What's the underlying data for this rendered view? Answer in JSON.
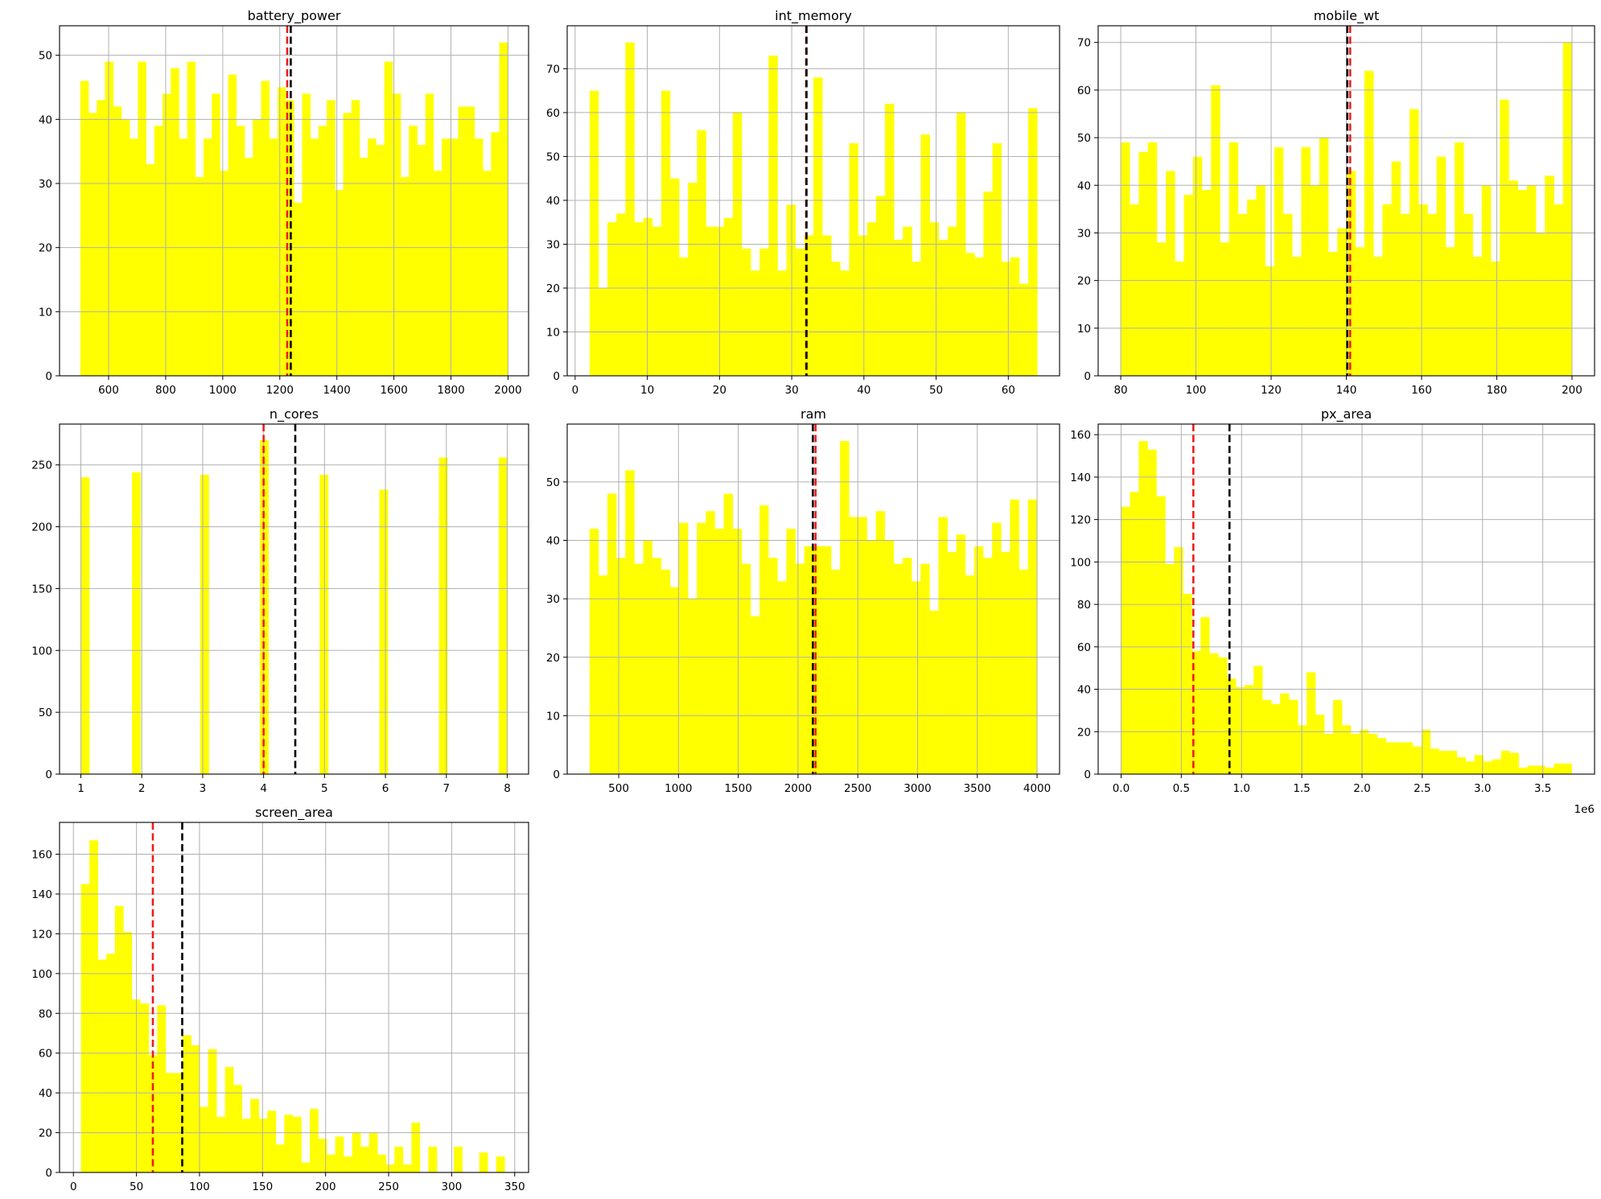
{
  "colors": {
    "bar": "#ffff00",
    "median_line": "#ee1c1c",
    "mean_line": "#000000",
    "grid": "#b0b0b0",
    "axis": "#000000"
  },
  "chart_data": [
    {
      "type": "bar",
      "title": "battery_power",
      "xlabel": "",
      "ylabel": "",
      "xlim": [
        428,
        2072
      ],
      "ylim": [
        0,
        54.6
      ],
      "xticks": [
        600,
        800,
        1000,
        1200,
        1400,
        1600,
        1800,
        2000
      ],
      "yticks": [
        0,
        10,
        20,
        30,
        40,
        50
      ],
      "bin_start": 501,
      "bin_end": 1998,
      "values": [
        46,
        41,
        43,
        49,
        42,
        40,
        37,
        49,
        33,
        39,
        44,
        48,
        37,
        49,
        31,
        37,
        44,
        32,
        47,
        39,
        34,
        40,
        46,
        37,
        45,
        43,
        27,
        44,
        37,
        39,
        43,
        29,
        41,
        43,
        34,
        37,
        36,
        49,
        44,
        31,
        39,
        36,
        44,
        32,
        37,
        37,
        42,
        42,
        37,
        32,
        38,
        52
      ],
      "median": 1226,
      "mean": 1238.5,
      "grid": true
    },
    {
      "type": "bar",
      "title": "int_memory",
      "xlabel": "",
      "ylabel": "",
      "xlim": [
        -1.1,
        67.1
      ],
      "ylim": [
        0,
        79.8
      ],
      "xticks": [
        0,
        10,
        20,
        30,
        40,
        50,
        60
      ],
      "yticks": [
        0,
        10,
        20,
        30,
        40,
        50,
        60,
        70
      ],
      "bin_start": 2,
      "bin_end": 64,
      "values": [
        65,
        20,
        35,
        37,
        76,
        35,
        36,
        34,
        65,
        45,
        27,
        44,
        56,
        34,
        34,
        36,
        60,
        29,
        24,
        29,
        73,
        24,
        39,
        29,
        32,
        68,
        32,
        26,
        24,
        53,
        32,
        35,
        41,
        62,
        31,
        34,
        26,
        55,
        35,
        31,
        34,
        60,
        28,
        27,
        42,
        53,
        26,
        27,
        21,
        61
      ],
      "median": 32,
      "mean": 32.05,
      "grid": true
    },
    {
      "type": "bar",
      "title": "mobile_wt",
      "xlabel": "",
      "ylabel": "",
      "xlim": [
        74,
        206
      ],
      "ylim": [
        0,
        73.5
      ],
      "xticks": [
        80,
        100,
        120,
        140,
        160,
        180,
        200
      ],
      "yticks": [
        0,
        10,
        20,
        30,
        40,
        50,
        60,
        70
      ],
      "bin_start": 80,
      "bin_end": 200,
      "values": [
        49,
        36,
        47,
        49,
        28,
        43,
        24,
        38,
        46,
        39,
        61,
        28,
        49,
        34,
        37,
        40,
        23,
        48,
        34,
        25,
        48,
        40,
        50,
        26,
        31,
        43,
        27,
        64,
        25,
        36,
        45,
        34,
        56,
        36,
        34,
        46,
        27,
        49,
        34,
        25,
        40,
        24,
        58,
        41,
        39,
        40,
        30,
        42,
        36,
        70
      ],
      "median": 141,
      "mean": 140.25,
      "grid": true
    },
    {
      "type": "bar",
      "title": "n_cores",
      "xlabel": "",
      "ylabel": "",
      "xlim": [
        0.65,
        8.35
      ],
      "ylim": [
        0,
        283
      ],
      "xticks": [
        1,
        2,
        3,
        4,
        5,
        6,
        7,
        8
      ],
      "yticks": [
        0,
        50,
        100,
        150,
        200,
        250
      ],
      "bin_start": 1,
      "bin_end": 8,
      "values": [
        240,
        0,
        0,
        0,
        0,
        0,
        244,
        0,
        0,
        0,
        0,
        0,
        0,
        0,
        242,
        0,
        0,
        0,
        0,
        0,
        0,
        270,
        0,
        0,
        0,
        0,
        0,
        0,
        242,
        0,
        0,
        0,
        0,
        0,
        0,
        230,
        0,
        0,
        0,
        0,
        0,
        0,
        256,
        0,
        0,
        0,
        0,
        0,
        0,
        256
      ],
      "median": 4,
      "mean": 4.52,
      "grid": true
    },
    {
      "type": "bar",
      "title": "ram",
      "xlabel": "",
      "ylabel": "",
      "xlim": [
        69,
        4188
      ],
      "ylim": [
        0,
        59.9
      ],
      "xticks": [
        500,
        1000,
        1500,
        2000,
        2500,
        3000,
        3500,
        4000
      ],
      "yticks": [
        0,
        10,
        20,
        30,
        40,
        50
      ],
      "bin_start": 256,
      "bin_end": 3998,
      "values": [
        42,
        34,
        48,
        37,
        52,
        36,
        40,
        37,
        35,
        32,
        43,
        30,
        43,
        45,
        42,
        48,
        42,
        36,
        27,
        46,
        37,
        33,
        42,
        36,
        39,
        39,
        39,
        35,
        57,
        44,
        44,
        40,
        45,
        40,
        36,
        37,
        33,
        36,
        28,
        44,
        38,
        41,
        34,
        39,
        37,
        43,
        38,
        47,
        35,
        47
      ],
      "median": 2146.5,
      "mean": 2124.2,
      "grid": true
    },
    {
      "type": "bar",
      "title": "px_area",
      "xlabel": "",
      "ylabel": "",
      "x_offset_label": "1e6",
      "xlim": [
        -0.19,
        3.93
      ],
      "ylim": [
        0,
        165
      ],
      "xticks": [
        0.0,
        0.5,
        1.0,
        1.5,
        2.0,
        2.5,
        3.0,
        3.5
      ],
      "xtick_labels": [
        "0.0",
        "0.5",
        "1.0",
        "1.5",
        "2.0",
        "2.5",
        "3.0",
        "3.5"
      ],
      "yticks": [
        0,
        20,
        40,
        60,
        80,
        100,
        120,
        140,
        160
      ],
      "bin_start": 0.0,
      "bin_end": 3.74,
      "values": [
        126,
        133,
        157,
        153,
        131,
        99,
        107,
        85,
        58,
        74,
        57,
        55,
        45,
        41,
        42,
        51,
        35,
        33,
        38,
        35,
        23,
        48,
        28,
        19,
        35,
        23,
        19,
        21,
        19,
        17,
        15,
        15,
        15,
        13,
        21,
        12,
        11,
        11,
        8,
        6,
        9,
        6,
        7,
        11,
        10,
        3,
        4,
        4,
        3,
        5,
        5
      ],
      "median": 0.6,
      "mean": 0.9,
      "grid": true
    },
    {
      "type": "bar",
      "title": "screen_area",
      "xlabel": "",
      "ylabel": "",
      "xlim": [
        -11,
        361
      ],
      "ylim": [
        0,
        176
      ],
      "xticks": [
        0,
        50,
        100,
        150,
        200,
        250,
        300,
        350
      ],
      "yticks": [
        0,
        20,
        40,
        60,
        80,
        100,
        120,
        140,
        160
      ],
      "bin_start": 6,
      "bin_end": 342,
      "values": [
        145,
        167,
        107,
        110,
        134,
        121,
        87,
        85,
        59,
        84,
        50,
        50,
        69,
        64,
        33,
        62,
        28,
        53,
        44,
        27,
        37,
        27,
        31,
        14,
        29,
        28,
        5,
        32,
        17,
        9,
        18,
        8,
        20,
        13,
        20,
        9,
        4,
        13,
        4,
        25,
        0,
        13,
        0,
        0,
        13,
        0,
        0,
        10,
        0,
        8
      ],
      "median": 63,
      "mean": 86.3,
      "grid": true
    }
  ]
}
